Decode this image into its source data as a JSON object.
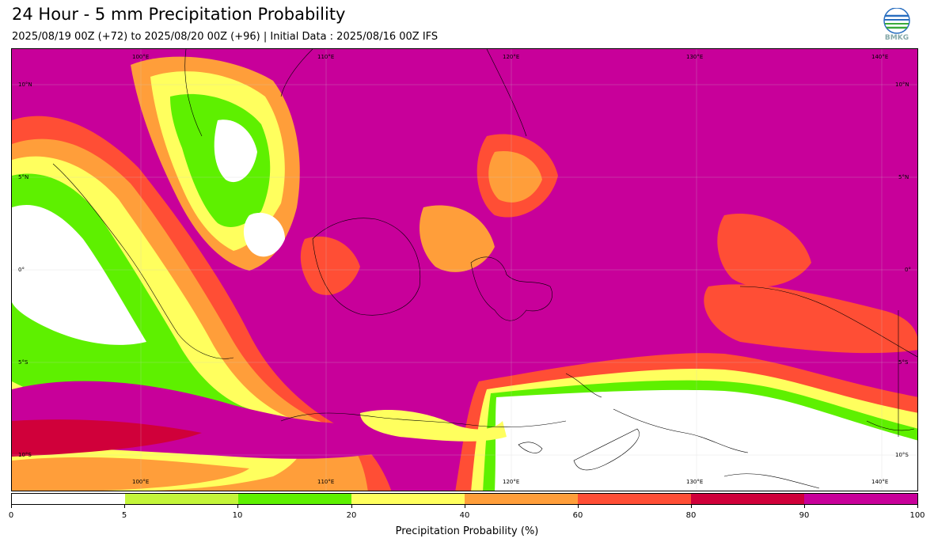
{
  "header": {
    "title": "24 Hour - 5 mm Precipitation Probability",
    "subtitle": "2025/08/19 00Z (+72) to 2025/08/20 00Z (+96) | Initial Data : 2025/08/16 00Z IFS",
    "logo_text": "BMKG"
  },
  "map": {
    "lon_labels_top": [
      "100°E",
      "110°E",
      "120°E",
      "130°E",
      "140°E"
    ],
    "lon_labels_bottom": [
      "100°E",
      "110°E",
      "120°E",
      "130°E",
      "140°E"
    ],
    "lat_labels_left": [
      "10°N",
      "5°N",
      "0°",
      "5°S",
      "10°S"
    ],
    "lat_labels_right": [
      "10°N",
      "5°N",
      "0°",
      "5°S",
      "10°S"
    ]
  },
  "colorbar": {
    "label": "Precipitation Probability (%)",
    "ticks": [
      "0",
      "5",
      "10",
      "20",
      "40",
      "60",
      "80",
      "90",
      "100"
    ],
    "colors": [
      "#ffffff",
      "#c4f53a",
      "#5ef000",
      "#ffff5e",
      "#ff9e3a",
      "#ff4e35",
      "#d0003a",
      "#c8009a"
    ]
  }
}
